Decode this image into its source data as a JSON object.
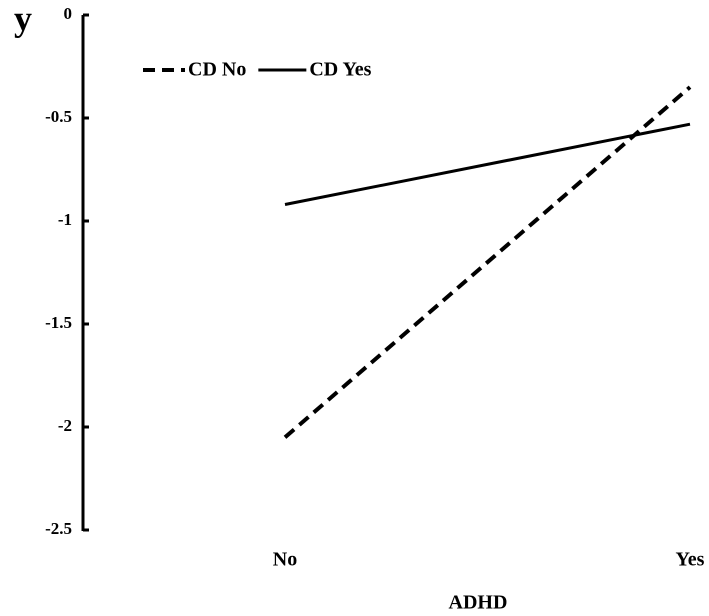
{
  "chart_data": {
    "type": "line",
    "y_label": "y",
    "x_label": "ADHD",
    "categories": [
      "No",
      "Yes"
    ],
    "series": [
      {
        "name": "CD No",
        "color": "#000000",
        "dashed": true,
        "values": [
          -2.05,
          -0.35
        ]
      },
      {
        "name": "CD Yes",
        "color": "#000000",
        "dashed": false,
        "values": [
          -0.92,
          -0.53
        ]
      }
    ],
    "ylim": [
      -2.5,
      0
    ],
    "yticks": [
      0,
      -0.5,
      -1,
      -1.5,
      -2,
      -2.5
    ],
    "grid": false,
    "legend": "top-left"
  }
}
